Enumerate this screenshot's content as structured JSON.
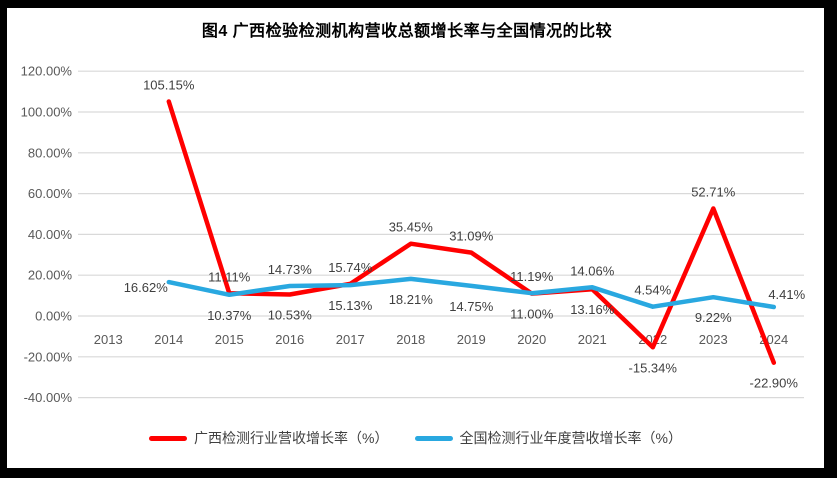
{
  "title": "图4 广西检验检测机构营收总额增长率与全国情况的比较",
  "colors": {
    "guangxi_line": "#FF0000",
    "national_line": "#29A8E0",
    "gridline": "#D9D9D9",
    "axis_text": "#595959",
    "data_label_text": "#3F3F3F",
    "frame": "#000000",
    "panel": "#FFFFFF"
  },
  "legend": {
    "items": [
      {
        "label": "广西检测行业营收增长率（%）"
      },
      {
        "label": "全国检测行业年度营收增长率（%）"
      }
    ]
  },
  "chart_data": {
    "type": "line",
    "title": "图4 广西检验检测机构营收总额增长率与全国情况的比较",
    "categories": [
      "2013",
      "2014",
      "2015",
      "2016",
      "2017",
      "2018",
      "2019",
      "2020",
      "2021",
      "2022",
      "2023",
      "2024"
    ],
    "series": [
      {
        "name": "广西检测行业营收增长率（%）",
        "color": "#FF0000",
        "values": [
          null,
          105.15,
          11.11,
          10.53,
          15.74,
          35.45,
          31.09,
          11.0,
          13.16,
          -15.34,
          52.71,
          -22.9
        ],
        "label_placements": [
          null,
          "above",
          "above",
          "below",
          "above",
          "above",
          "above",
          "below",
          "below",
          "below",
          "above",
          "below"
        ]
      },
      {
        "name": "全国检测行业年度营收增长率（%）",
        "color": "#29A8E0",
        "values": [
          null,
          16.62,
          10.37,
          14.73,
          15.13,
          18.21,
          14.75,
          11.19,
          14.06,
          4.54,
          9.22,
          4.41
        ],
        "label_placements": [
          null,
          "left",
          "below",
          "above",
          "below",
          "below",
          "below",
          "above",
          "above",
          "above",
          "below",
          "above-right"
        ]
      }
    ],
    "xlabel": "",
    "ylabel": "",
    "ylim": [
      -40,
      120
    ],
    "ytick_step": 20,
    "ytick_format": "0.00%",
    "grid": true,
    "data_labels": true,
    "legend_position": "bottom"
  }
}
